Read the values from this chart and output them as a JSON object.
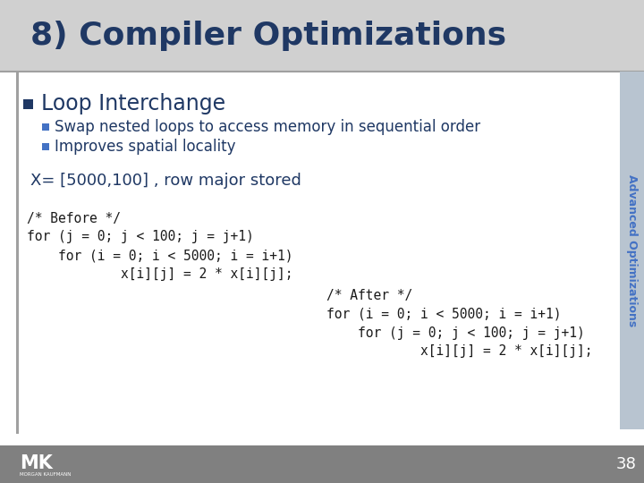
{
  "title": "8) Compiler Optimizations",
  "sidebar_text": "Advanced Optimizations",
  "bullet1": "Loop Interchange",
  "bullet2": "Swap nested loops to access memory in sequential order",
  "bullet3": "Improves spatial locality",
  "array_desc": "X= [5000,100] , row major stored",
  "before_code": [
    "/* Before */",
    "for (j = 0; j < 100; j = j+1)",
    "    for (i = 0; i < 5000; i = i+1)",
    "            x[i][j] = 2 * x[i][j];"
  ],
  "after_code": [
    "/* After */",
    "for (i = 0; i < 5000; i = i+1)",
    "    for (j = 0; j < 100; j = j+1)",
    "            x[i][j] = 2 * x[i][j];"
  ],
  "title_color": "#1F3864",
  "title_bg": "#D0D0D0",
  "bullet_color": "#1F3864",
  "code_color": "#1a1a1a",
  "sidebar_color": "#4472C4",
  "sidebar_bg": "#B8C4D0",
  "page_bg": "#F0F0F0",
  "slide_bg": "#FFFFFF",
  "footer_bg": "#808080",
  "page_number": "38",
  "bullet_square_color": "#1F3864",
  "sub_bullet_square_color": "#4472C4"
}
